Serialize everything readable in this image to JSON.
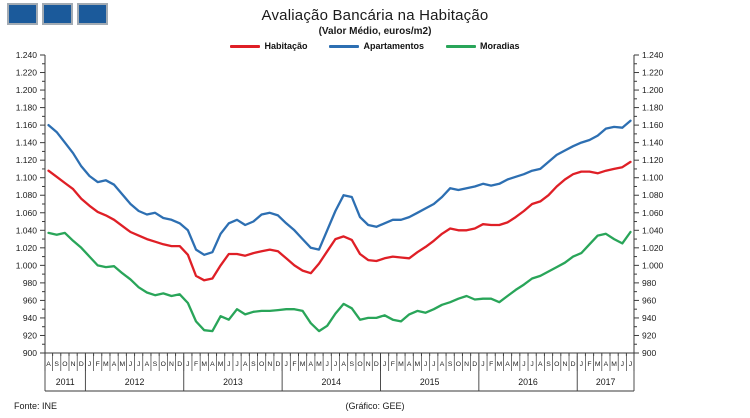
{
  "header": {
    "title": "Avaliação Bancária na Habitação",
    "subtitle": "(Valor Médio, euros/m2)",
    "logo_square_color": "#1b5a9b",
    "logo_square_count": 3
  },
  "footer": {
    "source": "Fonte:  INE",
    "credit": "(Gráfico: GEE)"
  },
  "chart_data": {
    "type": "line",
    "title": "Avaliação Bancária na Habitação",
    "subtitle": "(Valor Médio, euros/m2)",
    "ylabel": "euros/m2",
    "ylim": [
      900,
      1240
    ],
    "ytick_step": 20,
    "ytick_minor_step": 10,
    "ytick_labels": [
      "900",
      "920",
      "940",
      "960",
      "980",
      "1.000",
      "1.020",
      "1.040",
      "1.060",
      "1.080",
      "1.100",
      "1.120",
      "1.140",
      "1.160",
      "1.180",
      "1.200",
      "1.220",
      "1.240"
    ],
    "grid": false,
    "legend_position": "top",
    "axis_color": "#3a3a3a",
    "years": [
      {
        "label": "2011",
        "months": [
          "A",
          "S",
          "O",
          "N",
          "D"
        ]
      },
      {
        "label": "2012",
        "months": [
          "J",
          "F",
          "M",
          "A",
          "M",
          "J",
          "J",
          "A",
          "S",
          "O",
          "N",
          "D"
        ]
      },
      {
        "label": "2013",
        "months": [
          "J",
          "F",
          "M",
          "A",
          "M",
          "J",
          "J",
          "A",
          "S",
          "O",
          "N",
          "D"
        ]
      },
      {
        "label": "2014",
        "months": [
          "J",
          "F",
          "M",
          "A",
          "M",
          "J",
          "J",
          "A",
          "S",
          "O",
          "N",
          "D"
        ]
      },
      {
        "label": "2015",
        "months": [
          "J",
          "F",
          "M",
          "A",
          "M",
          "J",
          "J",
          "A",
          "S",
          "O",
          "N",
          "D"
        ]
      },
      {
        "label": "2016",
        "months": [
          "J",
          "F",
          "M",
          "A",
          "M",
          "J",
          "J",
          "A",
          "S",
          "O",
          "N",
          "D"
        ]
      },
      {
        "label": "2017",
        "months": [
          "J",
          "F",
          "M",
          "A",
          "M",
          "J",
          "J"
        ]
      }
    ],
    "series": [
      {
        "name": "Habitação",
        "color": "#df1f26",
        "values": [
          1108,
          1101,
          1094,
          1087,
          1076,
          1068,
          1061,
          1057,
          1052,
          1045,
          1038,
          1034,
          1030,
          1027,
          1024,
          1022,
          1022,
          1012,
          988,
          983,
          985,
          1000,
          1013,
          1013,
          1011,
          1014,
          1016,
          1018,
          1016,
          1008,
          1000,
          994,
          991,
          1002,
          1016,
          1030,
          1033,
          1029,
          1013,
          1006,
          1005,
          1008,
          1010,
          1009,
          1008,
          1015,
          1021,
          1028,
          1036,
          1042,
          1040,
          1040,
          1042,
          1047,
          1046,
          1046,
          1049,
          1055,
          1062,
          1070,
          1073,
          1080,
          1090,
          1098,
          1104,
          1107,
          1107,
          1105,
          1108,
          1110,
          1112,
          1118
        ]
      },
      {
        "name": "Apartamentos",
        "color": "#2d6fb2",
        "values": [
          1160,
          1152,
          1140,
          1128,
          1113,
          1102,
          1095,
          1097,
          1092,
          1081,
          1070,
          1062,
          1058,
          1060,
          1054,
          1052,
          1048,
          1040,
          1018,
          1012,
          1015,
          1036,
          1048,
          1052,
          1046,
          1050,
          1058,
          1060,
          1057,
          1048,
          1040,
          1030,
          1020,
          1018,
          1040,
          1062,
          1080,
          1078,
          1055,
          1046,
          1044,
          1048,
          1052,
          1052,
          1055,
          1060,
          1065,
          1070,
          1078,
          1088,
          1086,
          1088,
          1090,
          1093,
          1091,
          1093,
          1098,
          1101,
          1104,
          1108,
          1110,
          1118,
          1126,
          1131,
          1136,
          1140,
          1143,
          1148,
          1156,
          1158,
          1157,
          1165
        ]
      },
      {
        "name": "Moradias",
        "color": "#29a559",
        "values": [
          1037,
          1035,
          1037,
          1028,
          1020,
          1010,
          1000,
          998,
          999,
          991,
          984,
          975,
          969,
          966,
          968,
          965,
          967,
          957,
          936,
          926,
          925,
          942,
          938,
          950,
          944,
          947,
          948,
          948,
          949,
          950,
          950,
          948,
          934,
          925,
          931,
          945,
          956,
          951,
          938,
          940,
          940,
          943,
          938,
          936,
          944,
          948,
          946,
          950,
          955,
          958,
          962,
          965,
          961,
          962,
          962,
          958,
          965,
          972,
          978,
          985,
          988,
          993,
          998,
          1003,
          1010,
          1014,
          1024,
          1034,
          1036,
          1030,
          1025,
          1038
        ]
      }
    ]
  }
}
